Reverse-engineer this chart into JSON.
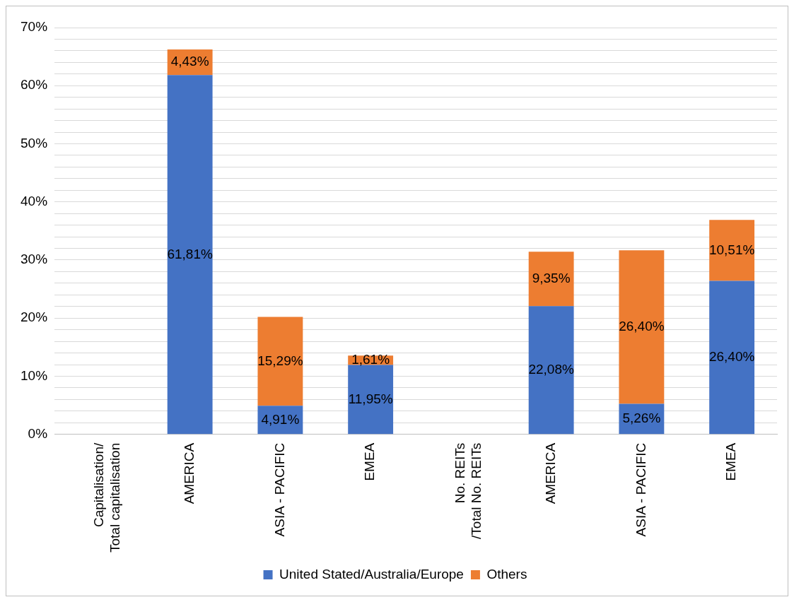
{
  "chart_data": {
    "type": "bar",
    "stacked": true,
    "categories": [
      "Capitalisation/\nTotal capitalisation",
      "AMERICA",
      "ASIA - PACIFIC",
      "EMEA",
      "No. REITs\n/Total No. REITs",
      "AMERICA",
      "ASIA - PACIFIC",
      "EMEA"
    ],
    "series": [
      {
        "name": "United Stated/Australia/Europe",
        "color": "#4472c4",
        "values": [
          null,
          61.81,
          4.91,
          11.95,
          null,
          22.08,
          5.26,
          26.4
        ],
        "value_labels": [
          null,
          "61,81%",
          "4,91%",
          "11,95%",
          null,
          "22,08%",
          "5,26%",
          "26,40%"
        ]
      },
      {
        "name": "Others",
        "color": "#ed7d31",
        "values": [
          null,
          4.43,
          15.29,
          1.61,
          null,
          9.35,
          26.4,
          10.51
        ],
        "value_labels": [
          null,
          "4,43%",
          "15,29%",
          "1,61%",
          null,
          "9,35%",
          "26,40%",
          "10,51%"
        ]
      }
    ],
    "ylim": [
      0,
      70
    ],
    "yticks": [
      {
        "value": 0,
        "label": "0%"
      },
      {
        "value": 2,
        "label": null
      },
      {
        "value": 4,
        "label": null
      },
      {
        "value": 6,
        "label": null
      },
      {
        "value": 8,
        "label": null
      },
      {
        "value": 10,
        "label": "10%"
      },
      {
        "value": 12,
        "label": null
      },
      {
        "value": 14,
        "label": null
      },
      {
        "value": 16,
        "label": null
      },
      {
        "value": 18,
        "label": null
      },
      {
        "value": 20,
        "label": "20%"
      },
      {
        "value": 22,
        "label": null
      },
      {
        "value": 24,
        "label": null
      },
      {
        "value": 26,
        "label": null
      },
      {
        "value": 28,
        "label": null
      },
      {
        "value": 30,
        "label": "30%"
      },
      {
        "value": 32,
        "label": null
      },
      {
        "value": 34,
        "label": null
      },
      {
        "value": 36,
        "label": null
      },
      {
        "value": 38,
        "label": null
      },
      {
        "value": 40,
        "label": "40%"
      },
      {
        "value": 42,
        "label": null
      },
      {
        "value": 44,
        "label": null
      },
      {
        "value": 46,
        "label": null
      },
      {
        "value": 48,
        "label": null
      },
      {
        "value": 50,
        "label": "50%"
      },
      {
        "value": 52,
        "label": null
      },
      {
        "value": 54,
        "label": null
      },
      {
        "value": 56,
        "label": null
      },
      {
        "value": 58,
        "label": null
      },
      {
        "value": 60,
        "label": "60%"
      },
      {
        "value": 62,
        "label": null
      },
      {
        "value": 64,
        "label": null
      },
      {
        "value": 66,
        "label": null
      },
      {
        "value": 68,
        "label": null
      },
      {
        "value": 70,
        "label": "70%"
      }
    ],
    "grid": "y",
    "legend": "bottom"
  }
}
